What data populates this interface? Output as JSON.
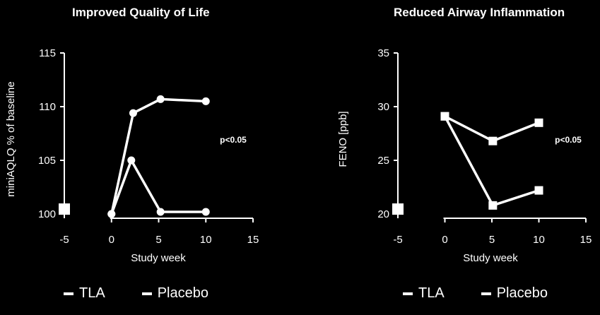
{
  "chart_data": [
    {
      "type": "line",
      "title": "Improved Quality of Life",
      "xlabel": "Study week",
      "ylabel": "miniAQLQ % of baseline",
      "xlim": [
        -5,
        15
      ],
      "ylim": [
        97.5,
        115
      ],
      "xticks": [
        -5,
        0,
        5,
        10,
        15
      ],
      "yticks": [
        100,
        105,
        110,
        115
      ],
      "marker": "circle",
      "annotation": "p<0.05",
      "series": [
        {
          "name": "TLA",
          "x": [
            0,
            2.3,
            5.2,
            10
          ],
          "y": [
            100,
            109.4,
            110.7,
            110.5
          ]
        },
        {
          "name": "Placebo",
          "x": [
            0,
            2.1,
            5.2,
            10
          ],
          "y": [
            100,
            105,
            100.2,
            100.2
          ]
        }
      ],
      "legend_position": "bottom"
    },
    {
      "type": "line",
      "title": "Reduced Airway Inflammation",
      "xlabel": "Study week",
      "ylabel": "FENO [ppb]",
      "xlim": [
        -5,
        15
      ],
      "ylim": [
        17.5,
        35
      ],
      "xticks": [
        -5,
        0,
        5,
        10,
        15
      ],
      "yticks": [
        20,
        25,
        30,
        35
      ],
      "marker": "square",
      "annotation": "p<0.05",
      "series": [
        {
          "name": "Placebo",
          "x": [
            0,
            5.1,
            10
          ],
          "y": [
            29.1,
            26.8,
            28.5
          ]
        },
        {
          "name": "TLA",
          "x": [
            0,
            5.1,
            10
          ],
          "y": [
            29.1,
            20.8,
            22.2
          ]
        }
      ],
      "legend_position": "bottom"
    }
  ],
  "legend": {
    "left": [
      "TLA",
      "Placebo"
    ],
    "right": [
      "TLA",
      "Placebo"
    ]
  },
  "colors": {
    "background": "#000000",
    "foreground": "#ffffff"
  }
}
